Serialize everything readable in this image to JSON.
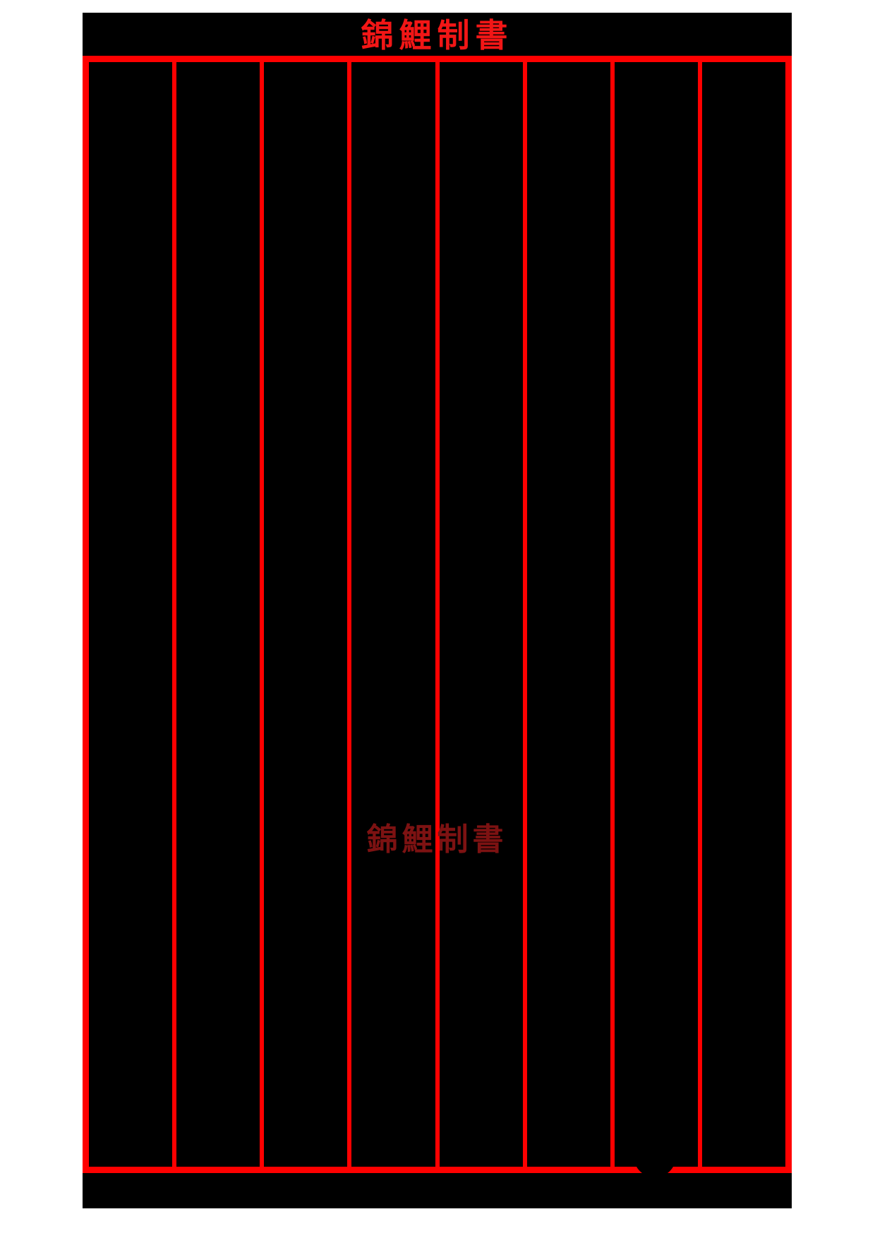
{
  "sheet": {
    "title": "錦鯉制書",
    "watermark": "錦鯉制書"
  },
  "grid": {
    "columns": 8
  },
  "colors": {
    "background": "#ffffff",
    "page": "#000000",
    "grid_red": "#ff0000",
    "title_red": "#f21616",
    "watermark_red": "#7d1212"
  }
}
